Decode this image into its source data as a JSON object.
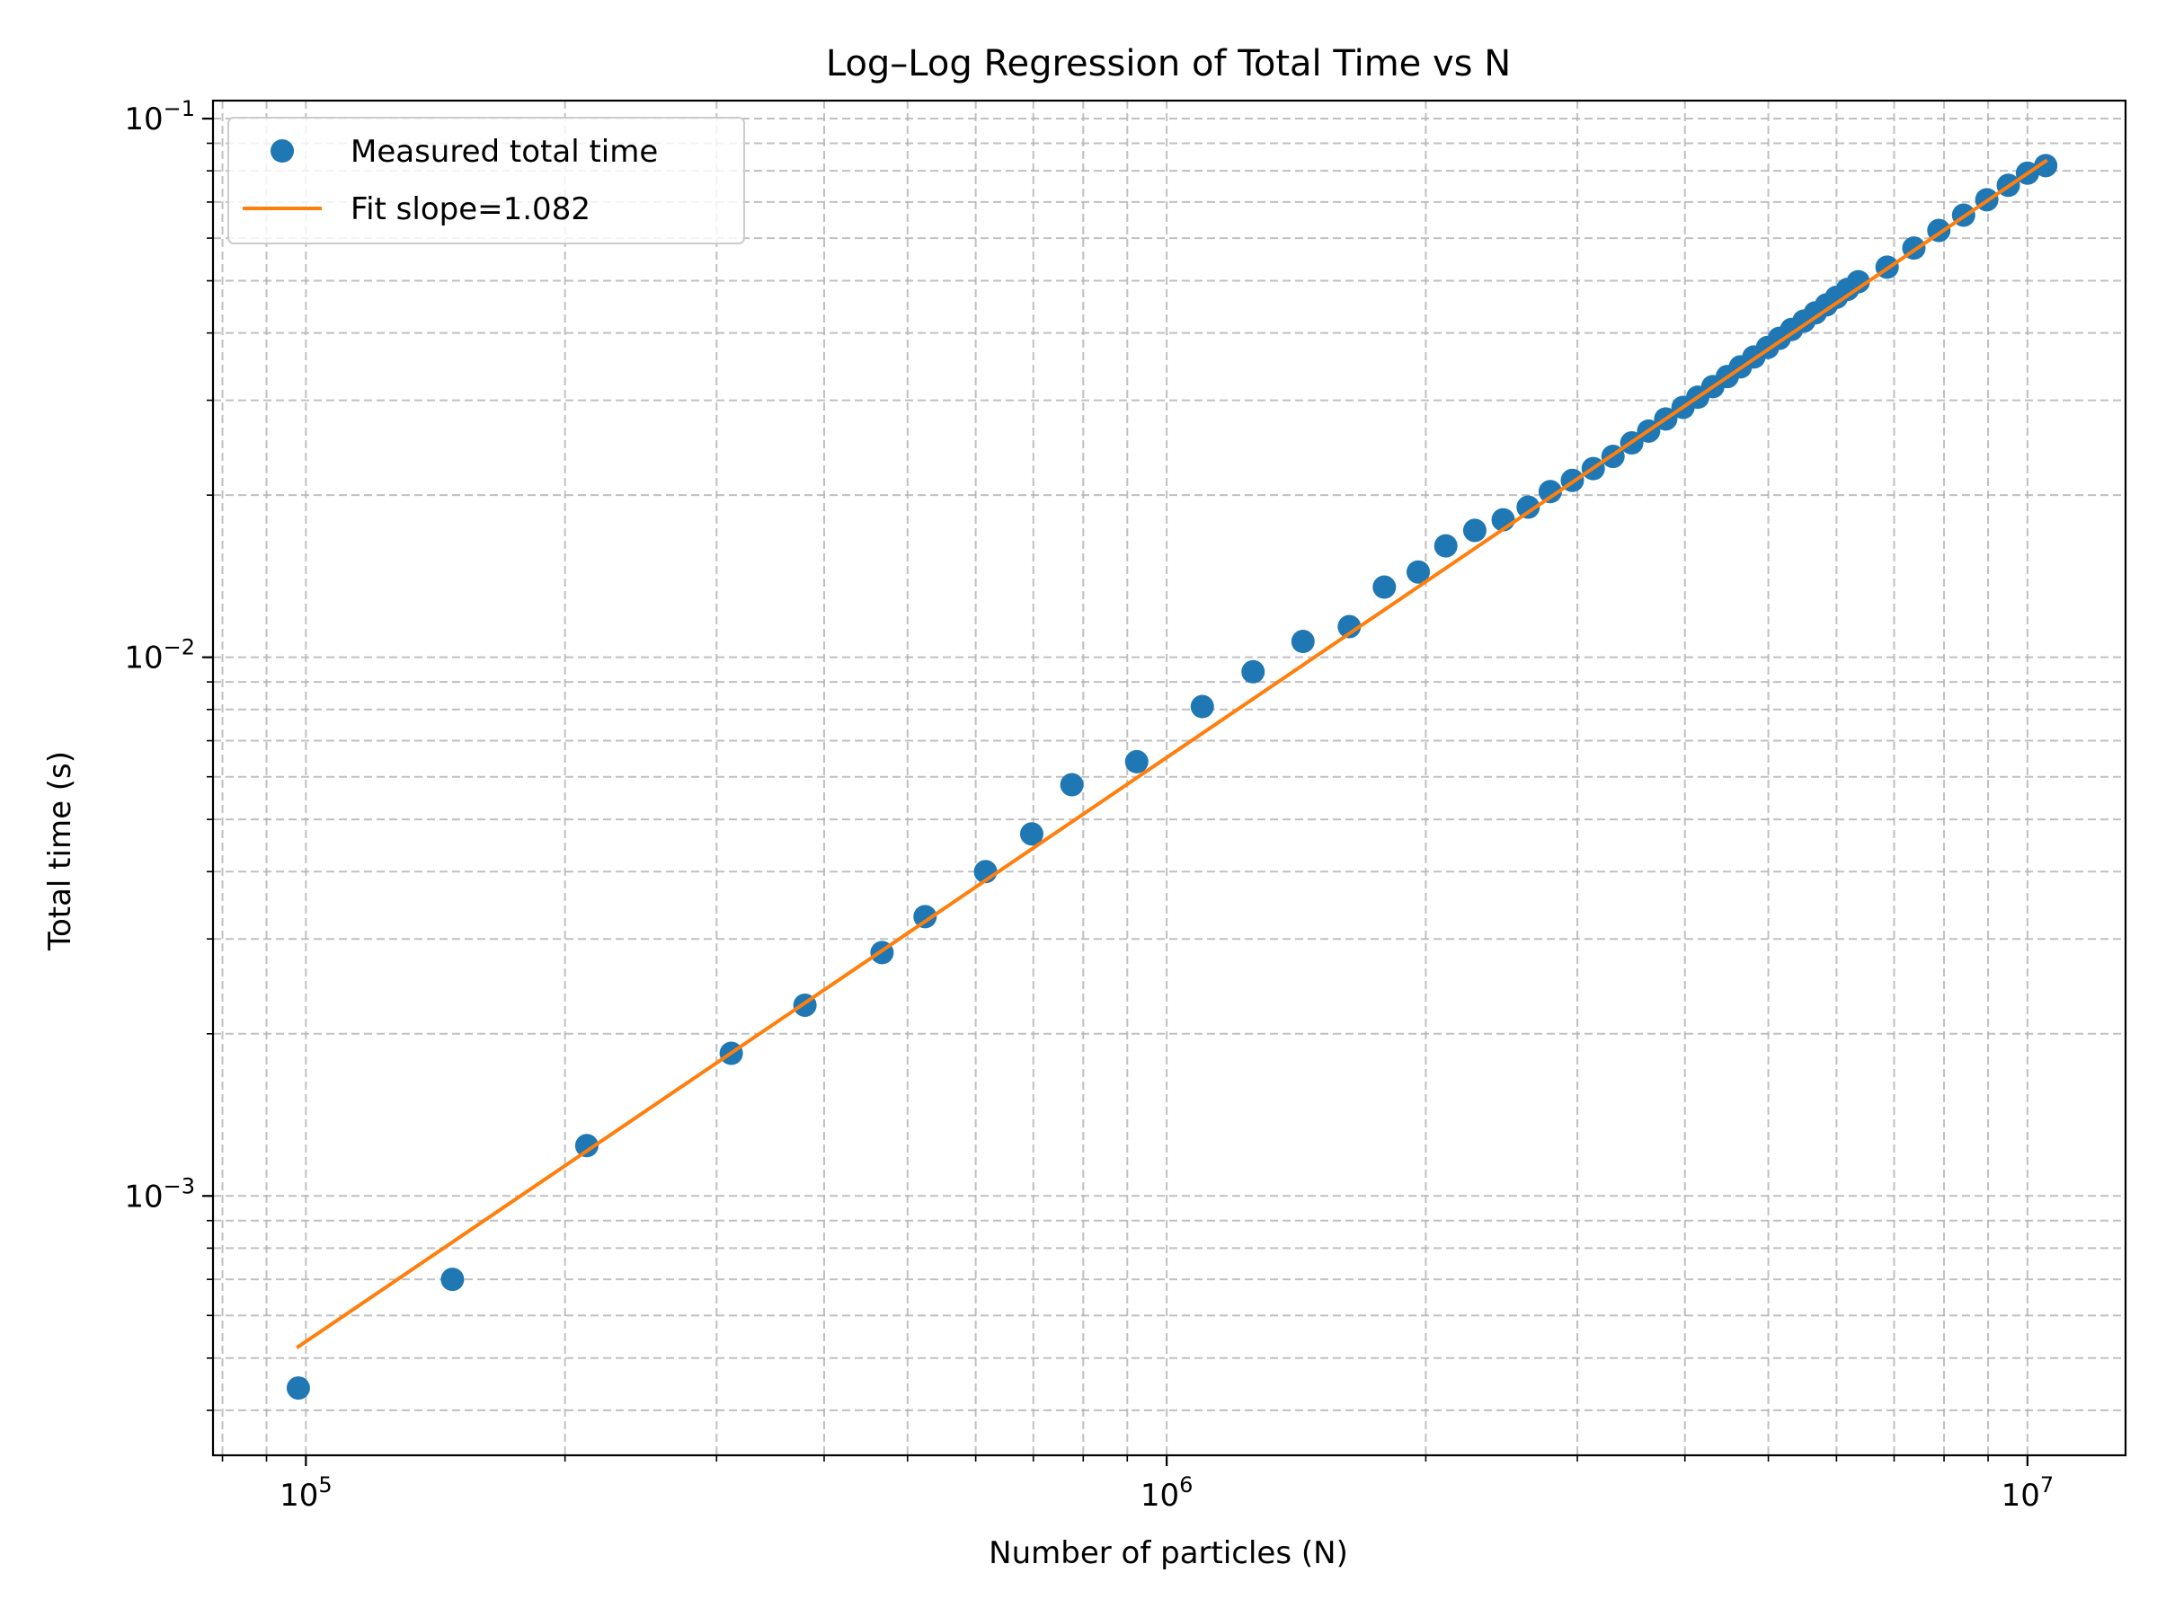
{
  "chart_data": {
    "type": "scatter",
    "title": "Log–Log Regression of Total Time vs N",
    "xlabel": "Number of particles (N)",
    "ylabel": "Total time (s)",
    "xscale": "log",
    "yscale": "log",
    "xlim": [
      78000,
      13000000
    ],
    "ylim": [
      0.00033,
      0.108
    ],
    "grid": "major and minor, dashed",
    "legend_position": "top-left",
    "x_tick_labels": [
      {
        "value": 100000,
        "base": "10",
        "exp": "5"
      },
      {
        "value": 1000000,
        "base": "10",
        "exp": "6"
      },
      {
        "value": 10000000,
        "base": "10",
        "exp": "7"
      }
    ],
    "y_tick_labels": [
      {
        "value": 0.001,
        "base": "10",
        "exp": "−3"
      },
      {
        "value": 0.01,
        "base": "10",
        "exp": "−2"
      },
      {
        "value": 0.1,
        "base": "10",
        "exp": "−1"
      }
    ],
    "series": [
      {
        "name": "Measured total time",
        "kind": "markers",
        "color": "#1f77b4",
        "points": [
          [
            98000,
            0.00044
          ],
          [
            148000,
            0.0007
          ],
          [
            212000,
            0.00124
          ],
          [
            312000,
            0.00184
          ],
          [
            380000,
            0.00226
          ],
          [
            467000,
            0.00283
          ],
          [
            524000,
            0.0033
          ],
          [
            616000,
            0.004
          ],
          [
            697000,
            0.0047
          ],
          [
            776000,
            0.0058
          ],
          [
            923000,
            0.0064
          ],
          [
            1100000,
            0.0081
          ],
          [
            1260000,
            0.0094
          ],
          [
            1440000,
            0.0107
          ],
          [
            1630000,
            0.0114
          ],
          [
            1790000,
            0.0135
          ],
          [
            1960000,
            0.0144
          ],
          [
            2110000,
            0.0161
          ],
          [
            2280000,
            0.0172
          ],
          [
            2460000,
            0.018
          ],
          [
            2630000,
            0.019
          ],
          [
            2790000,
            0.0203
          ],
          [
            2960000,
            0.0213
          ],
          [
            3130000,
            0.0224
          ],
          [
            3300000,
            0.0236
          ],
          [
            3470000,
            0.025
          ],
          [
            3630000,
            0.0263
          ],
          [
            3800000,
            0.0277
          ],
          [
            3980000,
            0.0291
          ],
          [
            4140000,
            0.0304
          ],
          [
            4310000,
            0.0318
          ],
          [
            4480000,
            0.0332
          ],
          [
            4640000,
            0.0346
          ],
          [
            4810000,
            0.0361
          ],
          [
            4990000,
            0.0376
          ],
          [
            5150000,
            0.0391
          ],
          [
            5320000,
            0.0406
          ],
          [
            5500000,
            0.0421
          ],
          [
            5670000,
            0.0436
          ],
          [
            5840000,
            0.0451
          ],
          [
            6000000,
            0.0466
          ],
          [
            6180000,
            0.0482
          ],
          [
            6360000,
            0.0498
          ],
          [
            6870000,
            0.053
          ],
          [
            7380000,
            0.0575
          ],
          [
            7890000,
            0.062
          ],
          [
            8430000,
            0.0662
          ],
          [
            8970000,
            0.0707
          ],
          [
            9500000,
            0.0752
          ],
          [
            10000000,
            0.0792
          ],
          [
            10500000,
            0.0818
          ]
        ]
      },
      {
        "name": "Fit slope=1.082",
        "kind": "line",
        "color": "#ff7f0e",
        "points": [
          [
            98000,
            0.000525
          ],
          [
            10500000,
            0.0834
          ]
        ]
      }
    ]
  }
}
